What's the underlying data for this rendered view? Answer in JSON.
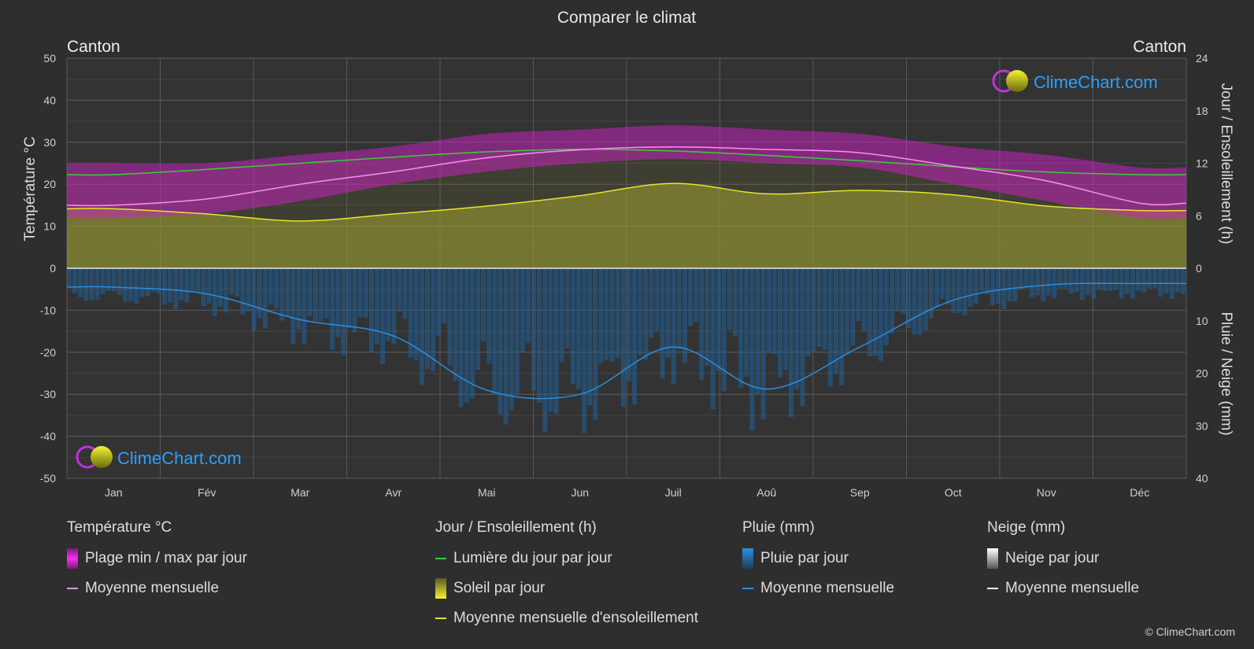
{
  "title": "Comparer le climat",
  "location_left": "Canton",
  "location_right": "Canton",
  "logo_text": "ClimeChart.com",
  "copyright": "© ClimeChart.com",
  "colors": {
    "background": "#2e2e2e",
    "temp_range": "#d020c8",
    "temp_mean": "#ff8cf0",
    "daylight": "#3ccc3c",
    "sunshine_fill": "#a4a432",
    "sunshine_mean": "#e6e628",
    "rain_fill": "#1f5f96",
    "rain_mean": "#2a8ee0",
    "snow_mean": "#ffffff",
    "logo_text": "#29a0ff"
  },
  "chart_data": {
    "type": "line",
    "title": "Comparer le climat",
    "x": [
      "Jan",
      "Fév",
      "Mar",
      "Avr",
      "Mai",
      "Jun",
      "Juil",
      "Aoû",
      "Sep",
      "Oct",
      "Nov",
      "Déc"
    ],
    "axes": {
      "left": {
        "label": "Température °C",
        "range": [
          -50,
          50
        ],
        "ticks": [
          50,
          40,
          30,
          20,
          10,
          0,
          -10,
          -20,
          -30,
          -40,
          -50
        ]
      },
      "right_top": {
        "label": "Jour / Ensoleillement (h)",
        "range": [
          0,
          24
        ],
        "ticks": [
          24,
          18,
          12,
          6,
          0
        ]
      },
      "right_bottom": {
        "label": "Pluie / Neige (mm)",
        "range": [
          0,
          40
        ],
        "ticks": [
          0,
          10,
          20,
          30,
          40
        ]
      }
    },
    "grid": true,
    "series": [
      {
        "name": "Plage min / max par jour",
        "kind": "band",
        "axis": "temperature",
        "min": [
          12,
          13,
          16,
          20,
          23,
          25,
          26,
          25,
          24,
          20,
          16,
          12
        ],
        "max": [
          25,
          25,
          27,
          29,
          32,
          33,
          34,
          33,
          32,
          29,
          27,
          24
        ]
      },
      {
        "name": "Moyenne mensuelle",
        "kind": "line",
        "axis": "temperature",
        "values": [
          15.0,
          16.5,
          20.0,
          23.0,
          26.3,
          28.2,
          28.9,
          28.3,
          27.5,
          24.3,
          20.8,
          15.5
        ]
      },
      {
        "name": "Lumière du jour par jour",
        "kind": "line",
        "axis": "hours",
        "values": [
          10.7,
          11.3,
          12.0,
          12.7,
          13.3,
          13.6,
          13.4,
          12.9,
          12.3,
          11.6,
          11.0,
          10.7
        ]
      },
      {
        "name": "Soleil par jour",
        "kind": "area",
        "axis": "hours",
        "values": [
          6.8,
          6.2,
          5.4,
          6.2,
          7.1,
          8.3,
          9.7,
          8.5,
          8.9,
          8.4,
          7.1,
          6.6
        ]
      },
      {
        "name": "Moyenne mensuelle d'ensoleillement",
        "kind": "line",
        "axis": "hours",
        "values": [
          6.8,
          6.2,
          5.4,
          6.2,
          7.1,
          8.3,
          9.7,
          8.5,
          8.9,
          8.4,
          7.1,
          6.6
        ]
      },
      {
        "name": "Pluie par jour",
        "kind": "bars",
        "axis": "rain"
      },
      {
        "name": "Moyenne mensuelle",
        "kind": "line",
        "axis": "rain",
        "values": [
          3.6,
          4.9,
          9.8,
          12.9,
          23.2,
          24.0,
          15.0,
          23.0,
          15.0,
          6.1,
          3.2,
          2.9
        ]
      },
      {
        "name": "Neige par jour",
        "kind": "bars",
        "axis": "rain"
      },
      {
        "name": "Moyenne mensuelle",
        "kind": "line",
        "axis": "rain",
        "values": [
          0,
          0,
          0,
          0,
          0,
          0,
          0,
          0,
          0,
          0,
          0,
          0
        ]
      }
    ]
  },
  "legend": {
    "temperature": {
      "title": "Température °C",
      "items": [
        "Plage min / max par jour",
        "Moyenne mensuelle"
      ]
    },
    "sun": {
      "title": "Jour / Ensoleillement (h)",
      "items": [
        "Lumière du jour par jour",
        "Soleil par jour",
        "Moyenne mensuelle d'ensoleillement"
      ]
    },
    "rain": {
      "title": "Pluie (mm)",
      "items": [
        "Pluie par jour",
        "Moyenne mensuelle"
      ]
    },
    "snow": {
      "title": "Neige (mm)",
      "items": [
        "Neige par jour",
        "Moyenne mensuelle"
      ]
    }
  }
}
